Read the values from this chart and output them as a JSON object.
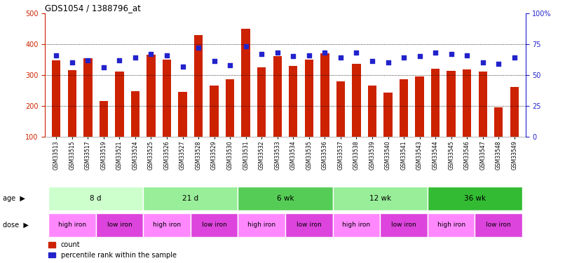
{
  "title": "GDS1054 / 1388796_at",
  "samples": [
    "GSM33513",
    "GSM33515",
    "GSM33517",
    "GSM33519",
    "GSM33521",
    "GSM33524",
    "GSM33525",
    "GSM33526",
    "GSM33527",
    "GSM33528",
    "GSM33529",
    "GSM33530",
    "GSM33531",
    "GSM33532",
    "GSM33533",
    "GSM33534",
    "GSM33535",
    "GSM33536",
    "GSM33537",
    "GSM33538",
    "GSM33539",
    "GSM33540",
    "GSM33541",
    "GSM33543",
    "GSM33544",
    "GSM33545",
    "GSM33546",
    "GSM33547",
    "GSM33548",
    "GSM33549"
  ],
  "counts": [
    348,
    315,
    355,
    215,
    310,
    248,
    365,
    350,
    245,
    430,
    265,
    285,
    450,
    325,
    360,
    330,
    350,
    370,
    280,
    335,
    265,
    242,
    286,
    296,
    320,
    313,
    318,
    310,
    195,
    262
  ],
  "percentiles": [
    66,
    60,
    62,
    56,
    62,
    64,
    67,
    66,
    57,
    72,
    61,
    58,
    73,
    67,
    68,
    65,
    66,
    68,
    64,
    68,
    61,
    60,
    64,
    65,
    68,
    67,
    66,
    60,
    59,
    64
  ],
  "ylim_left": [
    100,
    500
  ],
  "ylim_right": [
    0,
    100
  ],
  "yticks_left": [
    100,
    200,
    300,
    400,
    500
  ],
  "yticks_right": [
    0,
    25,
    50,
    75,
    100
  ],
  "age_groups": [
    {
      "label": "8 d",
      "start": 0,
      "end": 6,
      "color": "#ccffcc"
    },
    {
      "label": "21 d",
      "start": 6,
      "end": 12,
      "color": "#99ee99"
    },
    {
      "label": "6 wk",
      "start": 12,
      "end": 18,
      "color": "#55cc55"
    },
    {
      "label": "12 wk",
      "start": 18,
      "end": 24,
      "color": "#99ee99"
    },
    {
      "label": "36 wk",
      "start": 24,
      "end": 30,
      "color": "#33bb33"
    }
  ],
  "dose_groups": [
    {
      "label": "high iron",
      "start": 0,
      "end": 3,
      "color": "#ff88ff"
    },
    {
      "label": "low iron",
      "start": 3,
      "end": 6,
      "color": "#dd44dd"
    },
    {
      "label": "high iron",
      "start": 6,
      "end": 9,
      "color": "#ff88ff"
    },
    {
      "label": "low iron",
      "start": 9,
      "end": 12,
      "color": "#dd44dd"
    },
    {
      "label": "high iron",
      "start": 12,
      "end": 15,
      "color": "#ff88ff"
    },
    {
      "label": "low iron",
      "start": 15,
      "end": 18,
      "color": "#dd44dd"
    },
    {
      "label": "high iron",
      "start": 18,
      "end": 21,
      "color": "#ff88ff"
    },
    {
      "label": "low iron",
      "start": 21,
      "end": 24,
      "color": "#dd44dd"
    },
    {
      "label": "high iron",
      "start": 24,
      "end": 27,
      "color": "#ff88ff"
    },
    {
      "label": "low iron",
      "start": 27,
      "end": 30,
      "color": "#dd44dd"
    }
  ],
  "bar_color": "#cc2200",
  "dot_color": "#2222cc",
  "background_color": "#ffffff",
  "left_axis_color": "#cc2200",
  "right_axis_color": "#2222cc"
}
